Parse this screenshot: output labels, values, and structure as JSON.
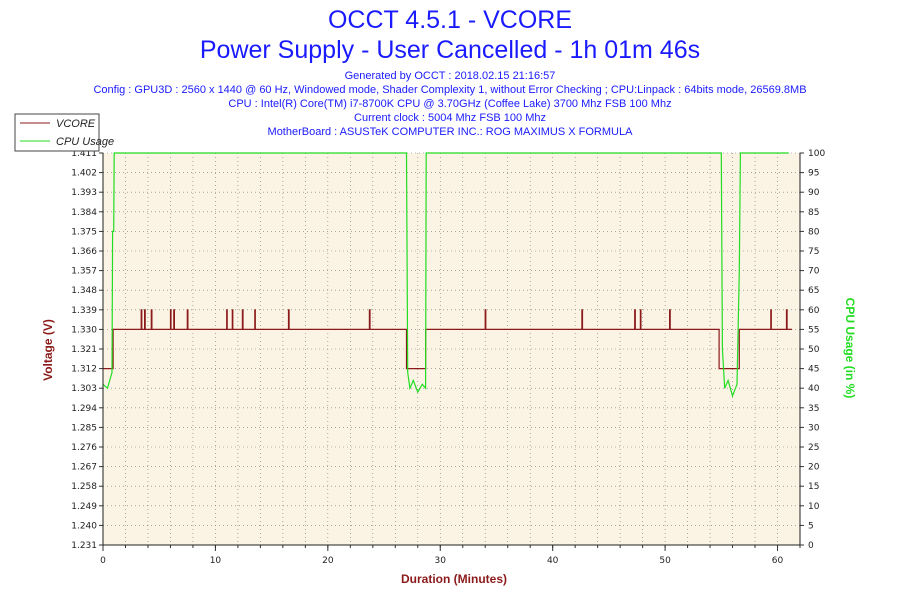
{
  "header": {
    "title": "OCCT 4.5.1 - VCORE",
    "subtitle": "Power Supply - User Cancelled - 1h 01m 46s",
    "info_lines": [
      "Generated by OCCT : 2018.02.15 21:16:57",
      "Config : GPU3D : 2560 x 1440 @ 60 Hz, Windowed mode, Shader Complexity 1, without Error Checking ; CPU:Linpack : 64bits mode, 26569.8MB",
      "CPU : Intel(R) Core(TM) i7-8700K CPU @ 3.70GHz (Coffee Lake) 3700 Mhz FSB 100 Mhz",
      "Current clock : 5004 Mhz FSB 100 Mhz",
      "MotherBoard : ASUSTeK COMPUTER INC.: ROG MAXIMUS X FORMULA"
    ]
  },
  "colors": {
    "title": "#1a1aff",
    "vcore": "#8b1a1a",
    "cpu_usage": "#22dd22",
    "plot_bg": "#fbf3e4",
    "grid": "#777777"
  },
  "chart_data": {
    "type": "line",
    "xlabel": "Duration (Minutes)",
    "ylabel": "Voltage (V)",
    "ylabel_right": "CPU Usage (in %)",
    "xlim": [
      0,
      62
    ],
    "ylim": [
      1.231,
      1.411
    ],
    "ylim_right": [
      0,
      100
    ],
    "x_ticks": [
      0,
      10,
      20,
      30,
      40,
      50,
      60
    ],
    "y_ticks": [
      "1.231",
      "1.240",
      "1.249",
      "1.258",
      "1.267",
      "1.276",
      "1.285",
      "1.294",
      "1.303",
      "1.312",
      "1.321",
      "1.330",
      "1.339",
      "1.348",
      "1.357",
      "1.366",
      "1.375",
      "1.384",
      "1.393",
      "1.402",
      "1.411"
    ],
    "y_ticks_right": [
      0,
      5,
      10,
      15,
      20,
      25,
      30,
      35,
      40,
      45,
      50,
      55,
      60,
      65,
      70,
      75,
      80,
      85,
      90,
      95,
      100
    ],
    "grid": true,
    "legend_position": "top-left",
    "series": [
      {
        "name": "VCORE",
        "axis": "left",
        "x": [
          0,
          0.9,
          0.9,
          3.4,
          3.4,
          3.45,
          3.45,
          3.7,
          3.7,
          3.75,
          3.75,
          4.3,
          4.3,
          4.35,
          4.35,
          6.0,
          6.0,
          6.05,
          6.05,
          6.3,
          6.3,
          6.35,
          6.35,
          7.5,
          7.5,
          7.55,
          7.55,
          11.0,
          11.0,
          11.05,
          11.05,
          11.5,
          11.5,
          11.55,
          11.55,
          12.4,
          12.4,
          12.45,
          12.45,
          13.5,
          13.5,
          13.55,
          13.55,
          16.5,
          16.5,
          16.55,
          16.55,
          23.7,
          23.7,
          23.75,
          23.75,
          27.0,
          27.0,
          28.7,
          28.7,
          34.0,
          34.0,
          34.05,
          34.05,
          42.6,
          42.6,
          42.65,
          42.65,
          47.3,
          47.3,
          47.35,
          47.35,
          47.8,
          47.8,
          47.85,
          47.85,
          50.4,
          50.4,
          50.45,
          50.45,
          54.8,
          54.8,
          56.6,
          56.6,
          59.4,
          59.4,
          59.45,
          59.45,
          60.8,
          60.8,
          60.85,
          60.85,
          61.3
        ],
        "y": [
          1.312,
          1.312,
          1.33,
          1.33,
          1.339,
          1.339,
          1.33,
          1.33,
          1.339,
          1.339,
          1.33,
          1.33,
          1.339,
          1.339,
          1.33,
          1.33,
          1.339,
          1.339,
          1.33,
          1.33,
          1.339,
          1.339,
          1.33,
          1.33,
          1.339,
          1.339,
          1.33,
          1.33,
          1.339,
          1.339,
          1.33,
          1.33,
          1.339,
          1.339,
          1.33,
          1.33,
          1.339,
          1.339,
          1.33,
          1.33,
          1.339,
          1.339,
          1.33,
          1.33,
          1.339,
          1.339,
          1.33,
          1.33,
          1.339,
          1.339,
          1.33,
          1.33,
          1.312,
          1.312,
          1.33,
          1.33,
          1.339,
          1.339,
          1.33,
          1.33,
          1.339,
          1.339,
          1.33,
          1.33,
          1.339,
          1.339,
          1.33,
          1.33,
          1.339,
          1.339,
          1.33,
          1.33,
          1.339,
          1.339,
          1.33,
          1.33,
          1.312,
          1.312,
          1.33,
          1.33,
          1.339,
          1.339,
          1.33,
          1.33,
          1.339,
          1.339,
          1.33,
          1.33
        ]
      },
      {
        "name": "CPU Usage",
        "axis": "right",
        "x": [
          0,
          0.4,
          0.6,
          0.8,
          0.85,
          0.95,
          1.0,
          27.0,
          27.1,
          27.3,
          27.6,
          28.0,
          28.4,
          28.7,
          28.75,
          55.0,
          55.1,
          55.3,
          55.6,
          56.0,
          56.4,
          56.6,
          56.7,
          61.0
        ],
        "y": [
          41,
          40,
          42,
          44,
          80,
          80,
          100,
          100,
          44,
          40,
          42,
          39,
          41,
          40,
          100,
          100,
          50,
          40,
          42,
          38,
          41,
          70,
          100,
          100
        ]
      }
    ]
  }
}
